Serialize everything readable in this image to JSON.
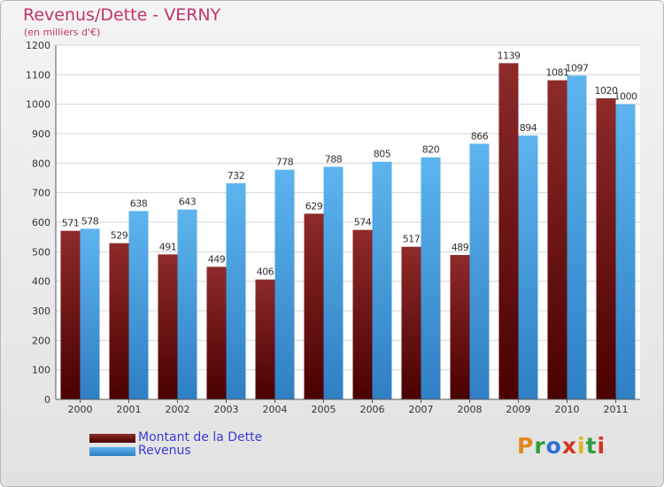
{
  "chart_data": {
    "type": "bar",
    "title": "Revenus/Dette - VERNY",
    "subtitle": "(en milliers d'€)",
    "categories": [
      "2000",
      "2001",
      "2002",
      "2003",
      "2004",
      "2005",
      "2006",
      "2007",
      "2008",
      "2009",
      "2010",
      "2011"
    ],
    "series": [
      {
        "name": "Montant de la Dette",
        "values": [
          571,
          529,
          491,
          449,
          406,
          629,
          574,
          517,
          489,
          1139,
          1081,
          1020
        ],
        "color": "#7a1818"
      },
      {
        "name": "Revenus",
        "values": [
          578,
          638,
          643,
          732,
          778,
          788,
          805,
          820,
          866,
          894,
          1097,
          1000
        ],
        "color": "#4aa5e6"
      }
    ],
    "ylim": [
      0,
      1200
    ],
    "yticks": [
      0,
      100,
      200,
      300,
      400,
      500,
      600,
      700,
      800,
      900,
      1000,
      1100,
      1200
    ],
    "grid": true,
    "legend_position": "bottom-left"
  },
  "legend": {
    "debt_label": "Montant de la Dette",
    "revenue_label": "Revenus"
  },
  "logo": {
    "letters": [
      "P",
      "r",
      "o",
      "x",
      "i",
      "t",
      "i"
    ],
    "colors": [
      "#e08a1e",
      "#2f9e3e",
      "#2a6fd1",
      "#d6331f",
      "#e0b21e",
      "#2f9e3e",
      "#d6331f"
    ]
  }
}
